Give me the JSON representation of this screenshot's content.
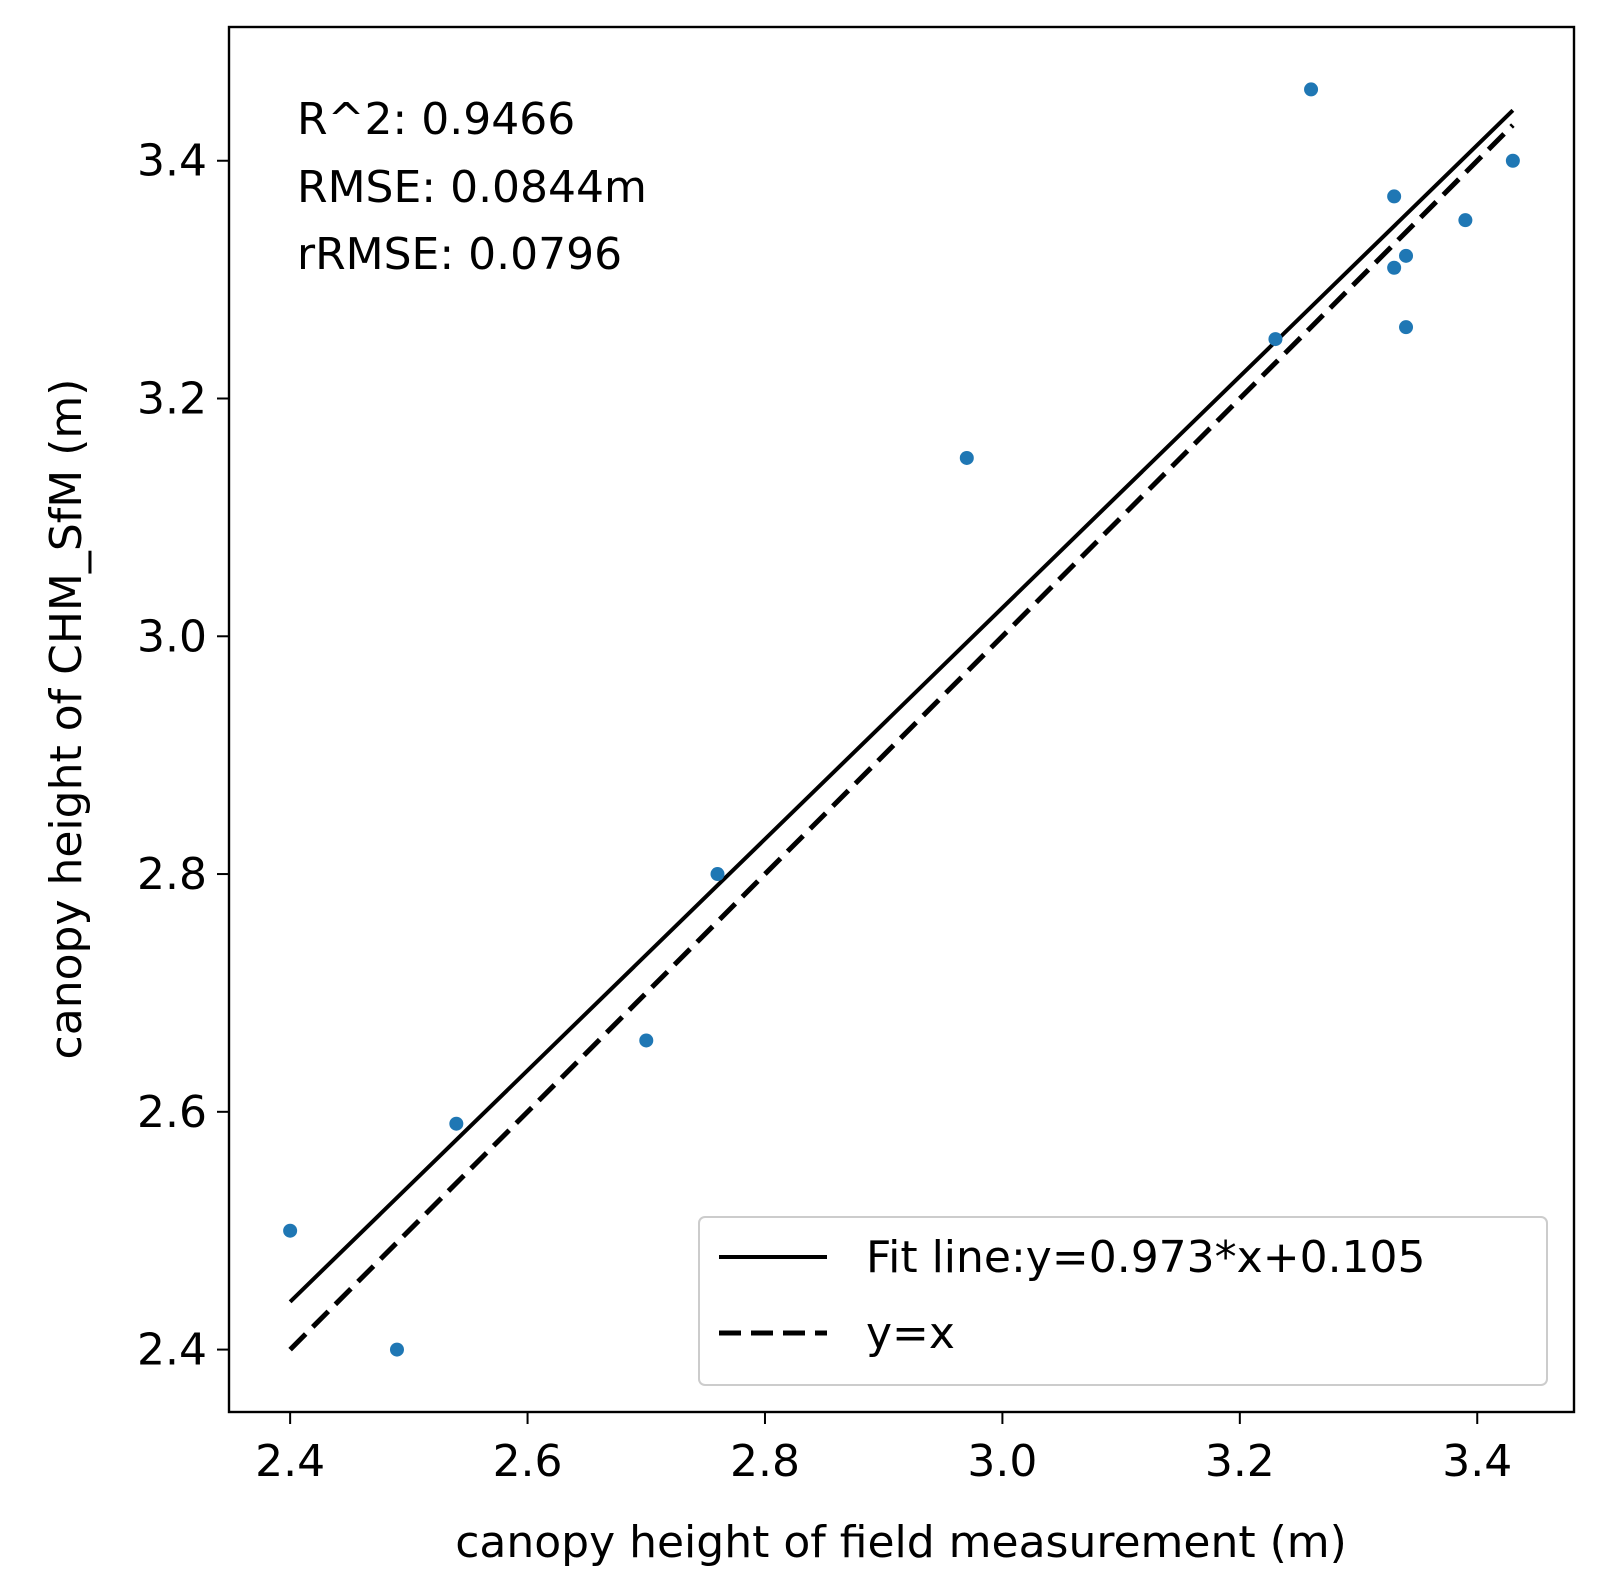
{
  "chart_data": {
    "type": "scatter",
    "xlabel": "canopy height of field measurement (m)",
    "ylabel": "canopy height of CHM_SfM (m)",
    "xlim": [
      2.3485,
      3.4815
    ],
    "ylim": [
      2.3475,
      3.5125
    ],
    "xticks": [
      2.4,
      2.6,
      2.8,
      3.0,
      3.2,
      3.4
    ],
    "xtick_labels": [
      "2.4",
      "2.6",
      "2.8",
      "3.0",
      "3.2",
      "3.4"
    ],
    "yticks": [
      2.4,
      2.6,
      2.8,
      3.0,
      3.2,
      3.4
    ],
    "ytick_labels": [
      "2.4",
      "2.6",
      "2.8",
      "3.0",
      "3.2",
      "3.4"
    ],
    "grid": false,
    "points": {
      "name": "samples",
      "color": "#1f77b4",
      "x": [
        2.4,
        2.49,
        2.54,
        2.7,
        2.76,
        2.97,
        3.23,
        3.26,
        3.33,
        3.33,
        3.34,
        3.34,
        3.39,
        3.43
      ],
      "y": [
        2.5,
        2.4,
        2.59,
        2.66,
        2.8,
        3.15,
        3.25,
        3.46,
        3.37,
        3.31,
        3.32,
        3.26,
        3.35,
        3.4
      ]
    },
    "fit_line": {
      "slope": 0.973,
      "intercept": 0.105,
      "x_range": [
        2.4,
        3.43
      ],
      "label": "Fit line:y=0.973*x+0.105",
      "style": "solid",
      "color": "#000000"
    },
    "identity_line": {
      "x_range": [
        2.4,
        3.43
      ],
      "label": "y=x",
      "style": "dashed",
      "color": "#000000"
    },
    "stats": [
      "R^2: 0.9466",
      "RMSE: 0.0844m",
      "rRMSE: 0.0796"
    ],
    "legend_position": "lower-right"
  }
}
